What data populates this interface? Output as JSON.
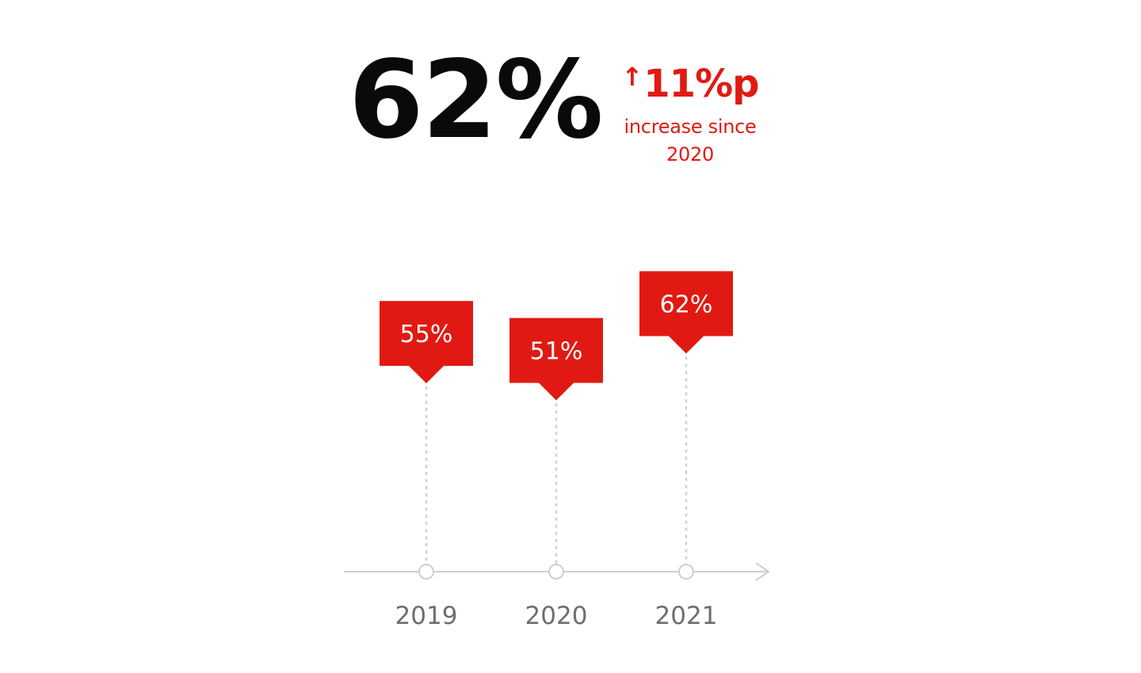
{
  "headline": {
    "value": "62%"
  },
  "change": {
    "arrow_icon": "arrow-up-icon",
    "value": "11%p",
    "caption_line1": "increase since",
    "caption_line2": "2020"
  },
  "colors": {
    "accent": "#e01a12",
    "headline": "#0a0a0a",
    "axis": "#cfcfcf",
    "tick_label": "#6e6e6e"
  },
  "chart_data": {
    "type": "scatter",
    "title": "",
    "xlabel": "",
    "ylabel": "",
    "categories": [
      "2019",
      "2020",
      "2021"
    ],
    "values": [
      55,
      51,
      62
    ],
    "data_labels": [
      "55%",
      "51%",
      "62%"
    ],
    "ylim": [
      0,
      80
    ],
    "grid": false,
    "legend": "none"
  }
}
